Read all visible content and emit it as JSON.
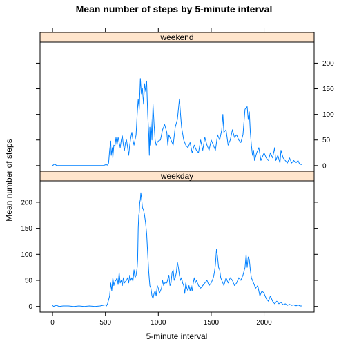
{
  "chart_data": {
    "type": "line",
    "title": "Mean number of steps by 5-minute interval",
    "xlabel": "5-minute interval",
    "ylabel": "Mean number of steps",
    "xlim": [
      -118,
      2473
    ],
    "ylim": [
      -11,
      241
    ],
    "x_ticks": [
      0,
      500,
      1000,
      1500,
      2000
    ],
    "y_ticks": [
      0,
      50,
      100,
      150,
      200
    ],
    "colors": {
      "line": "#0080ff",
      "strip": "#ffe5cc"
    },
    "panels": [
      {
        "name": "weekend",
        "points": [
          [
            0,
            0
          ],
          [
            20,
            3
          ],
          [
            40,
            0
          ],
          [
            100,
            0
          ],
          [
            200,
            0
          ],
          [
            300,
            0
          ],
          [
            400,
            0
          ],
          [
            480,
            0
          ],
          [
            505,
            2
          ],
          [
            520,
            1
          ],
          [
            530,
            5
          ],
          [
            540,
            30
          ],
          [
            550,
            48
          ],
          [
            555,
            20
          ],
          [
            565,
            35
          ],
          [
            570,
            15
          ],
          [
            580,
            40
          ],
          [
            590,
            38
          ],
          [
            600,
            55
          ],
          [
            610,
            40
          ],
          [
            620,
            55
          ],
          [
            630,
            45
          ],
          [
            640,
            35
          ],
          [
            650,
            50
          ],
          [
            660,
            58
          ],
          [
            670,
            40
          ],
          [
            680,
            30
          ],
          [
            690,
            45
          ],
          [
            700,
            50
          ],
          [
            710,
            35
          ],
          [
            720,
            20
          ],
          [
            730,
            40
          ],
          [
            740,
            55
          ],
          [
            750,
            65
          ],
          [
            760,
            50
          ],
          [
            770,
            40
          ],
          [
            780,
            50
          ],
          [
            790,
            60
          ],
          [
            800,
            100
          ],
          [
            810,
            130
          ],
          [
            820,
            110
          ],
          [
            830,
            170
          ],
          [
            840,
            140
          ],
          [
            850,
            150
          ],
          [
            860,
            120
          ],
          [
            870,
            160
          ],
          [
            880,
            145
          ],
          [
            890,
            165
          ],
          [
            900,
            100
          ],
          [
            910,
            60
          ],
          [
            915,
            20
          ],
          [
            920,
            75
          ],
          [
            925,
            40
          ],
          [
            930,
            90
          ],
          [
            940,
            50
          ],
          [
            950,
            120
          ],
          [
            960,
            80
          ],
          [
            970,
            50
          ],
          [
            980,
            40
          ],
          [
            990,
            45
          ],
          [
            1000,
            48
          ],
          [
            1020,
            50
          ],
          [
            1040,
            70
          ],
          [
            1060,
            80
          ],
          [
            1080,
            65
          ],
          [
            1090,
            40
          ],
          [
            1100,
            60
          ],
          [
            1120,
            50
          ],
          [
            1140,
            40
          ],
          [
            1160,
            75
          ],
          [
            1180,
            90
          ],
          [
            1200,
            130
          ],
          [
            1210,
            100
          ],
          [
            1220,
            75
          ],
          [
            1240,
            50
          ],
          [
            1260,
            40
          ],
          [
            1280,
            35
          ],
          [
            1300,
            45
          ],
          [
            1320,
            25
          ],
          [
            1340,
            40
          ],
          [
            1360,
            30
          ],
          [
            1380,
            25
          ],
          [
            1400,
            50
          ],
          [
            1420,
            30
          ],
          [
            1440,
            55
          ],
          [
            1460,
            40
          ],
          [
            1480,
            30
          ],
          [
            1500,
            50
          ],
          [
            1520,
            40
          ],
          [
            1540,
            30
          ],
          [
            1560,
            60
          ],
          [
            1580,
            50
          ],
          [
            1600,
            70
          ],
          [
            1610,
            100
          ],
          [
            1620,
            65
          ],
          [
            1640,
            70
          ],
          [
            1660,
            40
          ],
          [
            1680,
            50
          ],
          [
            1700,
            70
          ],
          [
            1720,
            55
          ],
          [
            1740,
            60
          ],
          [
            1760,
            50
          ],
          [
            1780,
            45
          ],
          [
            1800,
            60
          ],
          [
            1820,
            110
          ],
          [
            1840,
            115
          ],
          [
            1850,
            90
          ],
          [
            1860,
            105
          ],
          [
            1870,
            65
          ],
          [
            1880,
            40
          ],
          [
            1890,
            20
          ],
          [
            1900,
            30
          ],
          [
            1910,
            10
          ],
          [
            1930,
            25
          ],
          [
            1950,
            35
          ],
          [
            1970,
            10
          ],
          [
            2000,
            25
          ],
          [
            2020,
            15
          ],
          [
            2040,
            10
          ],
          [
            2060,
            25
          ],
          [
            2080,
            15
          ],
          [
            2100,
            35
          ],
          [
            2110,
            10
          ],
          [
            2130,
            20
          ],
          [
            2150,
            5
          ],
          [
            2160,
            30
          ],
          [
            2180,
            15
          ],
          [
            2200,
            10
          ],
          [
            2220,
            5
          ],
          [
            2240,
            15
          ],
          [
            2260,
            5
          ],
          [
            2280,
            10
          ],
          [
            2300,
            5
          ],
          [
            2320,
            10
          ],
          [
            2335,
            3
          ],
          [
            2355,
            2
          ]
        ]
      },
      {
        "name": "weekday",
        "points": [
          [
            0,
            2
          ],
          [
            10,
            0
          ],
          [
            20,
            1
          ],
          [
            40,
            2
          ],
          [
            60,
            0
          ],
          [
            100,
            1
          ],
          [
            150,
            1
          ],
          [
            200,
            0
          ],
          [
            250,
            1
          ],
          [
            300,
            0
          ],
          [
            350,
            1
          ],
          [
            400,
            0
          ],
          [
            450,
            1
          ],
          [
            500,
            3
          ],
          [
            510,
            1
          ],
          [
            520,
            5
          ],
          [
            540,
            20
          ],
          [
            550,
            45
          ],
          [
            560,
            30
          ],
          [
            570,
            55
          ],
          [
            580,
            40
          ],
          [
            590,
            48
          ],
          [
            600,
            50
          ],
          [
            610,
            55
          ],
          [
            620,
            42
          ],
          [
            630,
            65
          ],
          [
            640,
            45
          ],
          [
            650,
            50
          ],
          [
            660,
            40
          ],
          [
            670,
            55
          ],
          [
            680,
            45
          ],
          [
            690,
            48
          ],
          [
            700,
            50
          ],
          [
            710,
            55
          ],
          [
            720,
            45
          ],
          [
            730,
            60
          ],
          [
            740,
            50
          ],
          [
            750,
            55
          ],
          [
            760,
            48
          ],
          [
            770,
            70
          ],
          [
            780,
            55
          ],
          [
            790,
            60
          ],
          [
            800,
            75
          ],
          [
            805,
            90
          ],
          [
            810,
            150
          ],
          [
            815,
            175
          ],
          [
            820,
            180
          ],
          [
            825,
            200
          ],
          [
            830,
            205
          ],
          [
            835,
            218
          ],
          [
            840,
            210
          ],
          [
            845,
            200
          ],
          [
            850,
            190
          ],
          [
            860,
            185
          ],
          [
            870,
            175
          ],
          [
            880,
            160
          ],
          [
            890,
            140
          ],
          [
            900,
            100
          ],
          [
            910,
            65
          ],
          [
            920,
            40
          ],
          [
            930,
            35
          ],
          [
            940,
            20
          ],
          [
            950,
            15
          ],
          [
            960,
            25
          ],
          [
            970,
            30
          ],
          [
            980,
            20
          ],
          [
            990,
            40
          ],
          [
            1000,
            35
          ],
          [
            1010,
            25
          ],
          [
            1020,
            30
          ],
          [
            1030,
            35
          ],
          [
            1040,
            50
          ],
          [
            1050,
            40
          ],
          [
            1060,
            45
          ],
          [
            1080,
            45
          ],
          [
            1100,
            60
          ],
          [
            1110,
            40
          ],
          [
            1120,
            45
          ],
          [
            1130,
            65
          ],
          [
            1140,
            70
          ],
          [
            1150,
            50
          ],
          [
            1160,
            55
          ],
          [
            1170,
            65
          ],
          [
            1180,
            85
          ],
          [
            1190,
            75
          ],
          [
            1200,
            60
          ],
          [
            1210,
            50
          ],
          [
            1220,
            55
          ],
          [
            1230,
            45
          ],
          [
            1240,
            40
          ],
          [
            1250,
            25
          ],
          [
            1260,
            45
          ],
          [
            1270,
            35
          ],
          [
            1280,
            30
          ],
          [
            1290,
            40
          ],
          [
            1300,
            30
          ],
          [
            1310,
            40
          ],
          [
            1320,
            30
          ],
          [
            1330,
            45
          ],
          [
            1340,
            55
          ],
          [
            1350,
            45
          ],
          [
            1360,
            50
          ],
          [
            1380,
            40
          ],
          [
            1400,
            35
          ],
          [
            1420,
            40
          ],
          [
            1440,
            45
          ],
          [
            1460,
            50
          ],
          [
            1480,
            40
          ],
          [
            1500,
            45
          ],
          [
            1520,
            55
          ],
          [
            1530,
            65
          ],
          [
            1540,
            80
          ],
          [
            1550,
            110
          ],
          [
            1560,
            95
          ],
          [
            1570,
            75
          ],
          [
            1580,
            70
          ],
          [
            1590,
            55
          ],
          [
            1600,
            50
          ],
          [
            1620,
            40
          ],
          [
            1640,
            55
          ],
          [
            1660,
            45
          ],
          [
            1680,
            55
          ],
          [
            1700,
            50
          ],
          [
            1720,
            40
          ],
          [
            1740,
            45
          ],
          [
            1760,
            55
          ],
          [
            1780,
            50
          ],
          [
            1800,
            60
          ],
          [
            1820,
            75
          ],
          [
            1830,
            100
          ],
          [
            1840,
            75
          ],
          [
            1850,
            95
          ],
          [
            1860,
            90
          ],
          [
            1870,
            70
          ],
          [
            1880,
            55
          ],
          [
            1900,
            45
          ],
          [
            1920,
            35
          ],
          [
            1940,
            40
          ],
          [
            1960,
            20
          ],
          [
            1980,
            30
          ],
          [
            2000,
            25
          ],
          [
            2020,
            15
          ],
          [
            2040,
            10
          ],
          [
            2060,
            20
          ],
          [
            2080,
            10
          ],
          [
            2100,
            5
          ],
          [
            2120,
            10
          ],
          [
            2140,
            5
          ],
          [
            2160,
            8
          ],
          [
            2180,
            3
          ],
          [
            2200,
            5
          ],
          [
            2220,
            2
          ],
          [
            2240,
            4
          ],
          [
            2260,
            2
          ],
          [
            2280,
            3
          ],
          [
            2300,
            1
          ],
          [
            2320,
            3
          ],
          [
            2340,
            1
          ],
          [
            2355,
            1
          ]
        ]
      }
    ]
  }
}
